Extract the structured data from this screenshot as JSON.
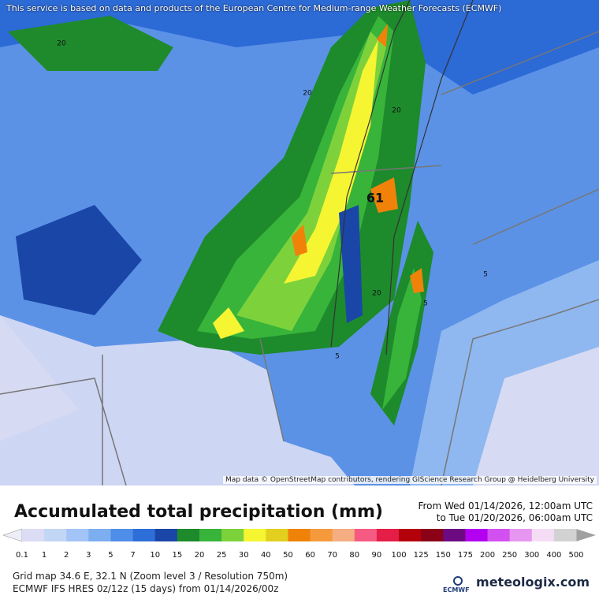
{
  "header": {
    "attribution": "This service is based on data and products of the European Centre for Medium-range Weather Forecasts (ECMWF)"
  },
  "map": {
    "contour_labels": [
      "20",
      "20",
      "20",
      "20",
      "5",
      "5",
      "5",
      "61"
    ],
    "credit": "Map data © OpenStreetMap contributors, rendering GIScience Research Group @ Heidelberg University"
  },
  "legend": {
    "title": "Accumulated total precipitation (mm)",
    "period_from": "From Wed 01/14/2026, 12:00am UTC",
    "period_to": "to Tue 01/20/2026, 06:00am UTC",
    "levels": [
      0.1,
      1,
      2,
      3,
      5,
      7,
      10,
      15,
      20,
      25,
      30,
      40,
      50,
      60,
      70,
      80,
      90,
      100,
      125,
      150,
      175,
      200,
      250,
      300,
      400,
      500
    ],
    "colors": [
      "#dcdcf5",
      "#c2d6f6",
      "#a2c4f6",
      "#7caef0",
      "#4f8ee8",
      "#2e6ed8",
      "#1a46a8",
      "#1d8a2c",
      "#38b43a",
      "#7dd23c",
      "#f5f532",
      "#e2cf1e",
      "#f0820a",
      "#f59a3c",
      "#f5ae82",
      "#f55a82",
      "#e41e46",
      "#b4000a",
      "#8a0016",
      "#6c0a82",
      "#b400f0",
      "#d250f0",
      "#e696f0",
      "#f5dcf5",
      "#d2d2d2"
    ]
  },
  "footer": {
    "grid": "Grid map 34.6 E, 32.1 N (Zoom level 3 / Resolution 750m)",
    "model": "ECMWF IFS HRES 0z/12z (15 days) from  01/14/2026/00z",
    "ecmwf": "ECMWF",
    "brand": "meteologix.com"
  }
}
